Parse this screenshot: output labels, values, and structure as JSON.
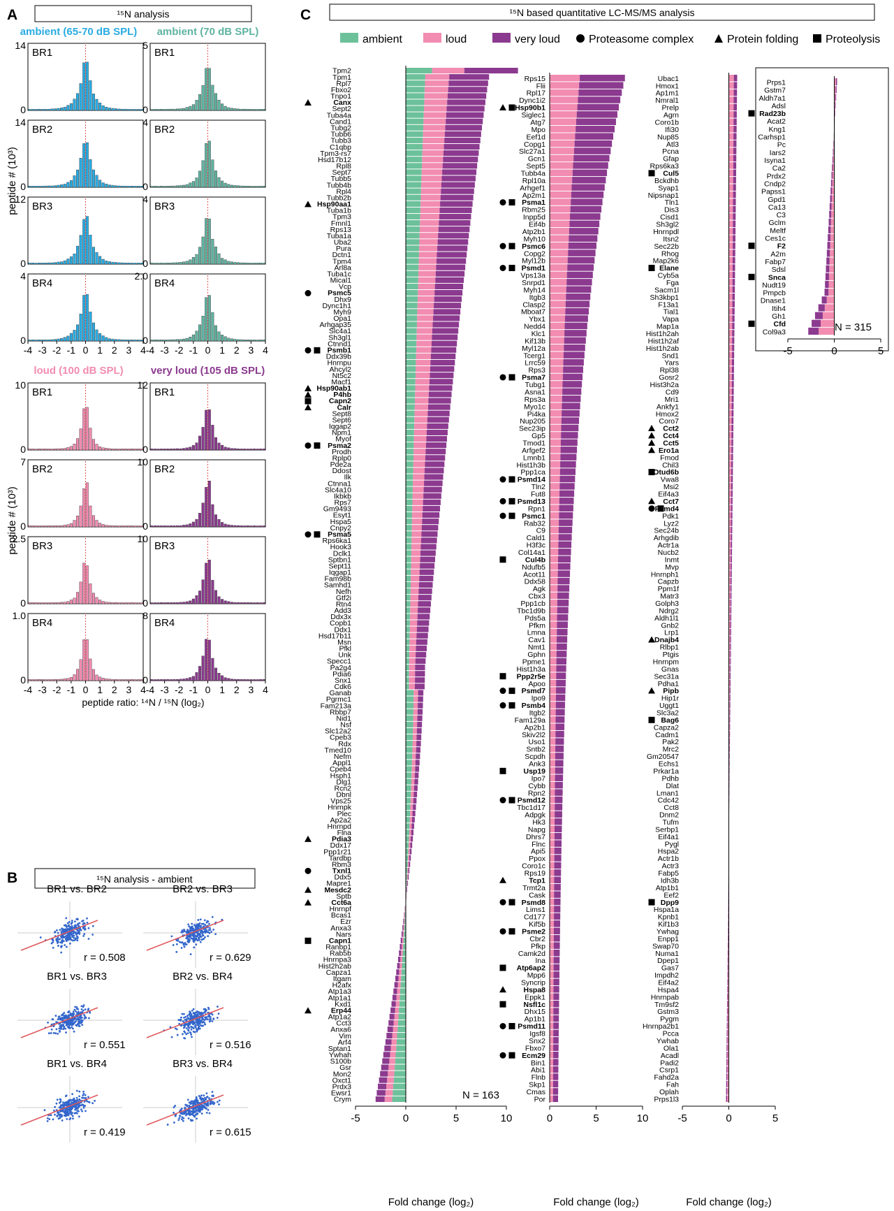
{
  "panels": {
    "a": "A",
    "b": "B",
    "c": "C"
  },
  "colors": {
    "ambient": "#6cc19a",
    "loud": "#f28cb1",
    "very_loud": "#8b3a8f",
    "cyan": "#29abe2",
    "teal": "#5fb3a1",
    "regression": "#e0575b",
    "scatter": "#3366cc"
  },
  "panel_a": {
    "title": "¹⁵N analysis",
    "conditions": [
      {
        "name": "ambient (65-70 dB SPL)",
        "color": "#29abe2",
        "ymax": [
          "14",
          "14",
          "12",
          "4"
        ]
      },
      {
        "name": "ambient (70 dB SPL)",
        "color": "#5fb3a1",
        "ymax": [
          "5",
          "4",
          "4",
          "2.0"
        ]
      },
      {
        "name": "loud (100 dB SPL)",
        "color": "#f28cb1",
        "ymax": [
          "10",
          "7",
          "2.5",
          "1.0"
        ]
      },
      {
        "name": "very loud (105 dB SPL)",
        "color": "#8b3a8f",
        "ymax": [
          "12",
          "10",
          "10",
          "8"
        ]
      }
    ],
    "replicates": [
      "BR1",
      "BR2",
      "BR3",
      "BR4"
    ],
    "ylabel": "peptide # (10³)",
    "xticks": [
      "-4",
      "-3",
      "-2",
      "-1",
      "0",
      "1",
      "2",
      "3",
      "4"
    ],
    "xlabel": "peptide ratio: ¹⁴N / ¹⁵N (log₂)",
    "zero": "0"
  },
  "panel_b": {
    "title": "¹⁵N analysis - ambient",
    "comparisons": [
      {
        "label": "BR1 vs. BR2",
        "r": "r = 0.508"
      },
      {
        "label": "BR2 vs. BR3",
        "r": "r = 0.629"
      },
      {
        "label": "BR1 vs. BR3",
        "r": "r = 0.551"
      },
      {
        "label": "BR2 vs. BR4",
        "r": "r = 0.516"
      },
      {
        "label": "BR1 vs. BR4",
        "r": "r = 0.419"
      },
      {
        "label": "BR3 vs. BR4",
        "r": "r = 0.615"
      }
    ]
  },
  "panel_c": {
    "title": "¹⁵N based quantitative LC-MS/MS analysis",
    "legend": [
      "ambient",
      "loud",
      "very loud",
      "Proteasome complex",
      "Protein folding",
      "Proteolysis"
    ],
    "xlabel": "Fold change (log₂)",
    "n_labels": [
      "N = 163",
      "N = 315"
    ]
  },
  "chart_data": [
    {
      "type": "bar",
      "panel": "C1",
      "stacked": true,
      "orientation": "horizontal",
      "series": [
        {
          "name": "ambient"
        },
        {
          "name": "loud"
        },
        {
          "name": "very loud"
        }
      ],
      "xlim": [
        -5,
        10
      ],
      "xticks": [
        "-5",
        "0",
        "5",
        "10"
      ],
      "n_label": "N = 163",
      "proteins": [
        "Tpm2",
        "Tpm1",
        "Rpl7",
        "Fbxo2",
        "Tnpo1",
        "Canx",
        "Sept2",
        "Tuba4a",
        "Cand1",
        "Tubg2",
        "Tubb6",
        "Tubb3",
        "C1qbp",
        "Tpm3-rs7",
        "Hsd17b12",
        "Rpl8",
        "Sept7",
        "Tubb5",
        "Tubb4b",
        "Rpl4",
        "Tubb2b",
        "Hsp90aa1",
        "Tuba1b",
        "Tpm3",
        "Fmnl1",
        "Rps13",
        "Tuba1a",
        "Uba2",
        "Pura",
        "Dctn1",
        "Tpm4",
        "Arl8a",
        "Tuba1c",
        "Mical1",
        "Vcp",
        "Psmc5",
        "Dhx9",
        "Dync1h1",
        "Myh9",
        "Opa1",
        "Arhgap35",
        "Slc4a1",
        "Sh3gl1",
        "Ctnnd1",
        "Psmb1",
        "Ddx39b",
        "Hnrnpu",
        "Ahcyl2",
        "Nt5c2",
        "Macf1",
        "Hsp90ab1",
        "P4hb",
        "Capn2",
        "Calr",
        "Sept8",
        "Sept6",
        "Iqgap2",
        "Npm1",
        "Myof",
        "Psma2",
        "Prodh",
        "Rplp0",
        "Pde2a",
        "Ddost",
        "Ilk",
        "Ctnna1",
        "Slc4a10",
        "Ikbkb",
        "Rps7",
        "Gm9493",
        "Esyt1",
        "Hspa5",
        "Cnpy2",
        "Psma5",
        "Rps6ka1",
        "Hook3",
        "Dclk1",
        "Sptbn1",
        "Sept11",
        "Iqgap1",
        "Fam98b",
        "Samhd1",
        "Nefh",
        "Gtf2i",
        "Rtn4",
        "Add3",
        "Ddx3x",
        "Copb1",
        "Ddx1",
        "Hsd17b11",
        "Msn",
        "Pfkl",
        "Unk",
        "Specc1",
        "Pa2g4",
        "Pdia6",
        "Snx1",
        "Cdk6",
        "Ganab",
        "Pgrmc1",
        "Fam213a",
        "Rbbp7",
        "Nid1",
        "Nsf",
        "Slc12a2",
        "Cpeb3",
        "Rdx",
        "Tmed10",
        "Nefm",
        "Appl1",
        "Cpeb4",
        "Hsph1",
        "Dlg1",
        "Rcn2",
        "Dbnl",
        "Vps25",
        "Hnrnpk",
        "Plec",
        "Ap2a2",
        "Hnrnpd",
        "Flna",
        "Pdia3",
        "Ddx17",
        "Ppp1r21",
        "Tardbp",
        "Rbm3",
        "Txnl1",
        "Ddx5",
        "Mapre1",
        "Mesdc2",
        "Sptb",
        "Cct6a",
        "Hnrnpf",
        "Bcas1",
        "Ezr",
        "Anxa3",
        "Nars",
        "Capn1",
        "Ranbp1",
        "Rab5b",
        "Hnrnpa3",
        "Hist2h2ab",
        "Capza1",
        "Itgam",
        "H2afx",
        "Atp1a3",
        "Atp1a1",
        "Kxd1",
        "Erp44",
        "Atp1a2",
        "Cct3",
        "Anxa6",
        "Vim",
        "Arf4",
        "Sptan1",
        "Ywhah",
        "S100b",
        "Gsr",
        "Mon2",
        "Oxct1",
        "Prdx3",
        "Ewsr1",
        "Crym"
      ],
      "bold": [
        "Canx",
        "Hsp90aa1",
        "Psmc5",
        "Psmb1",
        "Hsp90ab1",
        "P4hb",
        "Capn2",
        "Calr",
        "Psma2",
        "Psma5",
        "Pdia3",
        "Txnl1",
        "Mesdc2",
        "Cct6a",
        "Capn1",
        "Erp44"
      ],
      "markers": [
        [
          "Canx",
          "T"
        ],
        [
          "Hsp90aa1",
          "T"
        ],
        [
          "Psmc5",
          "C"
        ],
        [
          "Psmb1",
          "CS"
        ],
        [
          "Hsp90ab1",
          "T"
        ],
        [
          "P4hb",
          "T"
        ],
        [
          "Capn2",
          "S"
        ],
        [
          "Calr",
          "T"
        ],
        [
          "Psma2",
          "CS"
        ],
        [
          "Psma5",
          "CS"
        ],
        [
          "Pdia3",
          "T"
        ],
        [
          "Txnl1",
          "C"
        ],
        [
          "Mesdc2",
          "T"
        ],
        [
          "Cct6a",
          "T"
        ],
        [
          "Capn1",
          "S"
        ],
        [
          "Erp44",
          "T"
        ]
      ],
      "note": "ordered by total fold change, descending from 9.7 (Tpm2) to -3.0 (Crym)"
    },
    {
      "type": "bar",
      "panel": "C2",
      "stacked": true,
      "orientation": "horizontal",
      "xlim": [
        0,
        10
      ],
      "xticks": [
        "0",
        "5",
        "10"
      ],
      "proteins": [
        "Rps15",
        "Flii",
        "Rpl17",
        "Dync1i2",
        "Hsp90b1",
        "Siglec1",
        "Atg7",
        "Mpo",
        "Eef1d",
        "Copg1",
        "Slc27a1",
        "Gcn1",
        "Sept5",
        "Tubb4a",
        "Rpl10a",
        "Arhgef1",
        "Ap2m1",
        "Psma1",
        "Rbm25",
        "Inpp5d",
        "Eif4b",
        "Atp2b1",
        "Myh10",
        "Psmc6",
        "Copg2",
        "Myl12b",
        "Psmd1",
        "Vps13a",
        "Snrpd1",
        "Myh14",
        "Itgb3",
        "Clasp2",
        "Mboat7",
        "Ybx1",
        "Nedd4",
        "Klc1",
        "Kif13b",
        "Myl12a",
        "Tcerg1",
        "Lrrc59",
        "Rps3",
        "Psma7",
        "Tubg1",
        "Asna1",
        "Rps3a",
        "Myo1c",
        "Pi4ka",
        "Nup205",
        "Sec23ip",
        "Gp5",
        "Tmod1",
        "Arfgef2",
        "Lmnb1",
        "Hist1h3b",
        "Ppp1ca",
        "Psmd14",
        "Tln2",
        "Fut8",
        "Psmd13",
        "Rpn1",
        "Psmc1",
        "Rab32",
        "C9",
        "Cald1",
        "H3f3c",
        "Col14a1",
        "Cul4b",
        "Ndufb5",
        "Acot11",
        "Ddx58",
        "Agk",
        "Cbx3",
        "Ppp1cb",
        "Tbc1d9b",
        "Pds5a",
        "Pfkm",
        "Lmna",
        "Cav1",
        "Nmt1",
        "Gphn",
        "Ppme1",
        "Hist1h3a",
        "Ppp2r5e",
        "Apoo",
        "Psmd7",
        "Ipo9",
        "Psmb4",
        "Itgb2",
        "Fam129a",
        "Ap2b1",
        "Skiv2l2",
        "Uso1",
        "Sntb2",
        "Scpdh",
        "Ank3",
        "Usp19",
        "Ipo7",
        "Cybb",
        "Rpn2",
        "Psmd12",
        "Tbc1d17",
        "Adpgk",
        "Hk3",
        "Napg",
        "Dhrs7",
        "Flnc",
        "Api5",
        "Ppox",
        "Coro1c",
        "Rps19",
        "Tcp1",
        "Trmt2a",
        "Cask",
        "Psmd8",
        "Lims1",
        "Cd177",
        "Kif5b",
        "Psme2",
        "Cbr2",
        "Pfkp",
        "Camk2d",
        "Ina",
        "Atp6ap2",
        "Mpp6",
        "Syncrip",
        "Hspa8",
        "Eppk1",
        "Nsfl1c",
        "Dhx15",
        "Ap1b1",
        "Psmd11",
        "Igsf8",
        "Snx2",
        "Fbxo7",
        "Ecm29",
        "Bin1",
        "Abi1",
        "Flnb",
        "Skp1",
        "Cmas",
        "Por"
      ],
      "bold": [
        "Hsp90b1",
        "Psma1",
        "Psmc6",
        "Psmd1",
        "Psma7",
        "Psmd14",
        "Psmd13",
        "Psmc1",
        "Cul4b",
        "Ppp2r5e",
        "Psmd7",
        "Psmb4",
        "Usp19",
        "Psmd12",
        "Tcp1",
        "Psmd8",
        "Psme2",
        "Atp6ap2",
        "Hspa8",
        "Nsfl1c",
        "Psmd11",
        "Ecm29"
      ],
      "markers": [
        [
          "Hsp90b1",
          "TS"
        ],
        [
          "Psma1",
          "CS"
        ],
        [
          "Psmc6",
          "CS"
        ],
        [
          "Psmd1",
          "CS"
        ],
        [
          "Psma7",
          "CS"
        ],
        [
          "Psmd14",
          "CS"
        ],
        [
          "Psmd13",
          "CS"
        ],
        [
          "Psmc1",
          "CS"
        ],
        [
          "Cul4b",
          "S"
        ],
        [
          "Ppp2r5e",
          "S"
        ],
        [
          "Psmd7",
          "CS"
        ],
        [
          "Psmb4",
          "CS"
        ],
        [
          "Usp19",
          "S"
        ],
        [
          "Psmd12",
          "CS"
        ],
        [
          "Tcp1",
          "T"
        ],
        [
          "Psmd8",
          "CS"
        ],
        [
          "Psme2",
          "CS"
        ],
        [
          "Atp6ap2",
          "S"
        ],
        [
          "Hspa8",
          "T"
        ],
        [
          "Nsfl1c",
          "S"
        ],
        [
          "Psmd11",
          "CS"
        ],
        [
          "Ecm29",
          "CS"
        ]
      ],
      "note": "ordered by total fold change, descending from 7.5 (Rps15) to 1.0 (Por)"
    },
    {
      "type": "bar",
      "panel": "C3",
      "stacked": true,
      "orientation": "horizontal",
      "xlim": [
        -5,
        5
      ],
      "xticks": [
        "-5",
        "0",
        "5"
      ],
      "proteins": [
        "Ubac1",
        "Hmox1",
        "Ap1m1",
        "Nmral1",
        "Prelp",
        "Agrn",
        "Coro1b",
        "Ifi30",
        "Nup85",
        "Atl3",
        "Pcna",
        "Gfap",
        "Rps6ka3",
        "Cul5",
        "Bckdhb",
        "Syap1",
        "Nipsnap1",
        "Tln1",
        "Dis3",
        "Cisd1",
        "Sh3gl2",
        "Hnrnpdl",
        "Itsn2",
        "Sec22b",
        "Rhog",
        "Map2k6",
        "Elane",
        "Cyb5a",
        "Fga",
        "Sacm1l",
        "Sh3kbp1",
        "F13a1",
        "Tial1",
        "Vapa",
        "Map1a",
        "Hist1h2ah",
        "Hist1h2af",
        "Hist1h2ab",
        "Snd1",
        "Yars",
        "Rpl38",
        "Gosr2",
        "Hist3h2a",
        "Cd9",
        "Mri1",
        "Ankfy1",
        "Hmox2",
        "Coro7",
        "Cct2",
        "Cct4",
        "Cct5",
        "Ero1a",
        "Fmod",
        "Chil3",
        "Otud6b",
        "Vwa8",
        "Msi2",
        "Eif4a3",
        "Cct7",
        "Psmd4",
        "Pdk1",
        "Lyz2",
        "Sec24b",
        "Arhgdib",
        "Actr1a",
        "Nucb2",
        "Inmt",
        "Mvp",
        "Hnrnph1",
        "Capzb",
        "Ppm1f",
        "Matr3",
        "Golph3",
        "Ndrg2",
        "Aldh1l1",
        "Gnb2",
        "Lrp1",
        "Dnajb4",
        "Rlbp1",
        "Ptgis",
        "Hnrnpm",
        "Gnas",
        "Sec31a",
        "Pdha1",
        "Pipb",
        "Hip1r",
        "Uggt1",
        "Slc3a2",
        "Bag6",
        "Capza2",
        "Cadm1",
        "Pak2",
        "Mrc2",
        "Gm20547",
        "Echs1",
        "Prkar1a",
        "Pdhb",
        "Dlat",
        "Lman1",
        "Cdc42",
        "Cct8",
        "Dnm2",
        "Tufm",
        "Serbp1",
        "Eif4a1",
        "Pygl",
        "Hspa2",
        "Actr1b",
        "Actr3",
        "Fabp5",
        "Idh3b",
        "Atp1b1",
        "Eef2",
        "Dpp9",
        "Hspa1a",
        "Kpnb1",
        "Kif1b3",
        "Ywhag",
        "Enpp1",
        "Swap70",
        "Numa1",
        "Dpep1",
        "Gas7",
        "Impdh2",
        "Eif4a2",
        "Hspa4",
        "Hnrnpab",
        "Tm9sf2",
        "Gstm3",
        "Pygm",
        "Hnrnpa2b1",
        "Pcca",
        "Ywhab",
        "Ola1",
        "Acadl",
        "Padi2",
        "Csrp1",
        "Fahd2a",
        "Fah",
        "Oplah",
        "Prps1l3"
      ],
      "bold": [
        "Cul5",
        "Elane",
        "Cct2",
        "Cct4",
        "Cct5",
        "Ero1a",
        "Otud6b",
        "Cct7",
        "Psmd4",
        "Dnajb4",
        "Pipb",
        "Bag6",
        "Dpp9"
      ],
      "markers": [
        [
          "Cul5",
          "S"
        ],
        [
          "Elane",
          "S"
        ],
        [
          "Cct2",
          "T"
        ],
        [
          "Cct4",
          "T"
        ],
        [
          "Cct5",
          "T"
        ],
        [
          "Ero1a",
          "T"
        ],
        [
          "Otud6b",
          "S"
        ],
        [
          "Cct7",
          "T"
        ],
        [
          "Psmd4",
          "CS"
        ],
        [
          "Dnajb4",
          "T"
        ],
        [
          "Pipb",
          "T"
        ],
        [
          "Bag6",
          "S"
        ],
        [
          "Dpp9",
          "S"
        ]
      ],
      "note": "fold changes close to zero, from 0.9 (Ubac1) to -0.3 (Prps1l3)"
    },
    {
      "type": "bar",
      "panel": "C4",
      "stacked": true,
      "orientation": "horizontal",
      "xlim": [
        -5,
        5
      ],
      "xticks": [
        "-5",
        "0",
        "5"
      ],
      "n_label": "N = 315",
      "proteins": [
        "Prps1",
        "Gstm7",
        "Aldh7a1",
        "Adsl",
        "Rad23b",
        "Acat2",
        "Kng1",
        "Carhsp1",
        "Pc",
        "Iars2",
        "Isyna1",
        "Ca2",
        "Prdx2",
        "Cndp2",
        "Papss1",
        "Gpd1",
        "Ca13",
        "C3",
        "Gclm",
        "Meltf",
        "Ces1c",
        "F2",
        "A2m",
        "Fabp7",
        "Sdsl",
        "Snca",
        "Nudt19",
        "Pmpcb",
        "Dnase1",
        "Itih4",
        "Gh1",
        "Cfd",
        "Col9a3"
      ],
      "bold": [
        "Rad23b",
        "F2",
        "Snca",
        "Cfd"
      ],
      "markers": [
        [
          "Rad23b",
          "S"
        ],
        [
          "F2",
          "S"
        ],
        [
          "Snca",
          "S"
        ],
        [
          "Cfd",
          "S"
        ]
      ],
      "note": "fold changes near zero to negative, from 0.3 (Prps1) to -2.8 (Col9a3)"
    },
    {
      "type": "bar",
      "panel": "A",
      "note": "histograms of peptide log2 ratios, centered near 0, per condition and replicate",
      "xlim": [
        -4,
        4
      ]
    },
    {
      "type": "scatter",
      "panel": "B",
      "note": "pairwise scatter of replicate ratios with regression lines",
      "r_values": [
        0.508,
        0.629,
        0.551,
        0.516,
        0.419,
        0.615
      ]
    }
  ]
}
